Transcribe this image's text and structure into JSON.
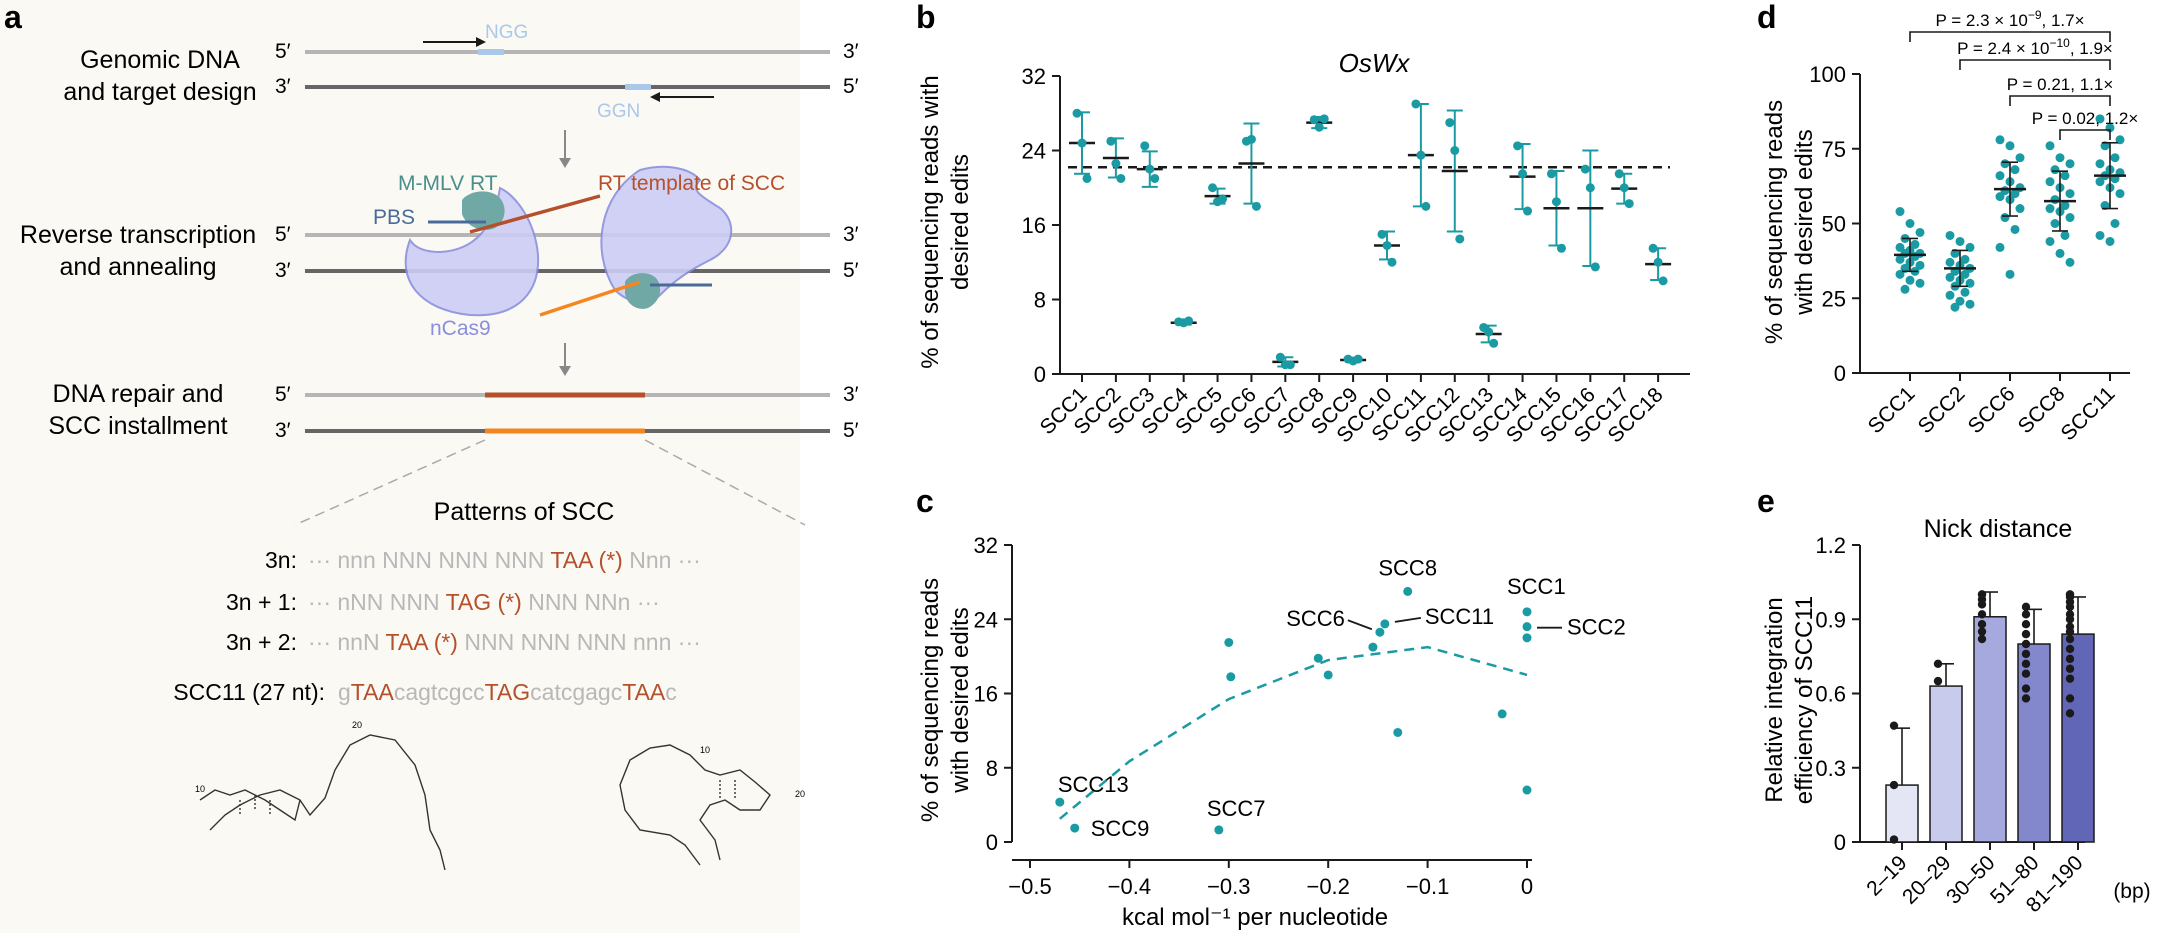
{
  "colors": {
    "teal": "#1a9ba3",
    "panelA_bg": "#fbf9f4",
    "strand_light": "#b5b5b5",
    "strand_dark": "#666666",
    "orange": "#f5861f",
    "rust": "#b5502c",
    "guide_blue": "#a9c8ea",
    "cas9_fill": "#cccdf5",
    "cas9_edge": "#8a8fdd",
    "rt_green": "#6fa8a4",
    "bar_colors": [
      "#e4e6f6",
      "#c9cbec",
      "#a6a9dd",
      "#8387cb",
      "#6166b6"
    ]
  },
  "panel_a": {
    "label": "a",
    "step1_line1": "Genomic DNA",
    "step1_line2": "and target design",
    "step2_line1": "Reverse transcription",
    "step2_line2": "and annealing",
    "step3_line1": "DNA repair and",
    "step3_line2": "SCC installment",
    "five": "5′",
    "three": "3′",
    "ngg": "NGG",
    "ggn": "GGN",
    "mmlv": "M-MLV RT",
    "pbs": "PBS",
    "rt_template": "RT template of SCC",
    "ncas9": "nCas9",
    "patterns_title": "Patterns of SCC",
    "row1_label": "3n:",
    "row1_pre": "··· nnn NNN NNN NNN ",
    "row1_stop": "TAA (*)",
    "row1_post": " Nnn ···",
    "row2_label": "3n + 1:",
    "row2_pre": "··· nNN NNN ",
    "row2_stop": "TAG (*)",
    "row2_post": " NNN NNn ···",
    "row3_label": "3n + 2:",
    "row3_pre": "··· nnN ",
    "row3_stop": "TAA (*)",
    "row3_post": " NNN NNN NNN nnn ···",
    "scc11_label": "SCC11 (27 nt):",
    "scc11_seq": [
      {
        "t": "g",
        "stop": false
      },
      {
        "t": "TAA",
        "stop": true
      },
      {
        "t": "cagtcgcc",
        "stop": false
      },
      {
        "t": "TAG",
        "stop": true
      },
      {
        "t": "catcgagc",
        "stop": false
      },
      {
        "t": "TAA",
        "stop": true
      },
      {
        "t": "c",
        "stop": false
      }
    ],
    "struct_numbers": [
      "10",
      "20",
      "10",
      "20"
    ]
  },
  "chart_data": [
    {
      "panel": "b",
      "type": "scatter",
      "title": "OsWx",
      "ylabel_line1": "% of sequencing reads with",
      "ylabel_line2": "desired edits",
      "ylim": [
        0,
        32
      ],
      "yticks": [
        "0",
        "8",
        "16",
        "24",
        "32"
      ],
      "categories": [
        "SCC1",
        "SCC2",
        "SCC3",
        "SCC4",
        "SCC5",
        "SCC6",
        "SCC7",
        "SCC8",
        "SCC9",
        "SCC10",
        "SCC11",
        "SCC12",
        "SCC13",
        "SCC14",
        "SCC15",
        "SCC16",
        "SCC17",
        "SCC18"
      ],
      "points": [
        [
          28,
          24.8,
          21
        ],
        [
          25,
          22.6,
          21
        ],
        [
          24.5,
          22,
          21
        ],
        [
          5.6,
          5.5,
          5.7
        ],
        [
          20,
          18.5,
          18.8
        ],
        [
          25,
          25.2,
          18
        ],
        [
          1.8,
          1.0,
          1.0
        ],
        [
          27.3,
          26.5,
          27.4
        ],
        [
          1.6,
          1.4,
          1.6
        ],
        [
          15,
          13.8,
          12
        ],
        [
          29,
          23.5,
          18
        ],
        [
          27,
          24,
          14.5
        ],
        [
          5.0,
          4.5,
          3.3
        ],
        [
          24.5,
          21.5,
          17.5
        ],
        [
          21.5,
          18.5,
          13.5
        ],
        [
          22,
          20,
          11.5
        ],
        [
          21.5,
          20,
          18.3
        ],
        [
          13.5,
          12,
          10
        ]
      ],
      "means": [
        24.8,
        23.2,
        22,
        5.5,
        19.1,
        22.6,
        1.3,
        27,
        1.5,
        13.8,
        23.5,
        21.8,
        4.3,
        21.2,
        17.8,
        17.8,
        19.9,
        11.8
      ],
      "sd": [
        3.3,
        2.1,
        1.9,
        0.2,
        0.8,
        4.3,
        0.5,
        0.6,
        0.2,
        1.5,
        5.5,
        6.5,
        0.9,
        3.5,
        4.0,
        6.2,
        1.6,
        1.7
      ],
      "reference_line": 22.2
    },
    {
      "panel": "c",
      "type": "scatter",
      "xlabel": "kcal mol⁻¹ per nucleotide",
      "ylabel_line1": "% of sequencing reads",
      "ylabel_line2": "with desired edits",
      "xlim": [
        -0.5,
        0
      ],
      "ylim": [
        0,
        32
      ],
      "xticks": [
        "−0.5",
        "−0.4",
        "−0.3",
        "−0.2",
        "−0.1",
        "0"
      ],
      "yticks": [
        "0",
        "8",
        "16",
        "24",
        "32"
      ],
      "points": [
        {
          "x": -0.47,
          "y": 4.3,
          "label": "SCC13"
        },
        {
          "x": -0.455,
          "y": 1.5,
          "label": "SCC9"
        },
        {
          "x": -0.31,
          "y": 1.3,
          "label": "SCC7"
        },
        {
          "x": -0.3,
          "y": 21.5,
          "label": ""
        },
        {
          "x": -0.298,
          "y": 17.8,
          "label": ""
        },
        {
          "x": -0.21,
          "y": 19.8,
          "label": ""
        },
        {
          "x": -0.2,
          "y": 18.0,
          "label": ""
        },
        {
          "x": -0.155,
          "y": 21.0,
          "label": ""
        },
        {
          "x": -0.148,
          "y": 22.6,
          "label": "SCC6"
        },
        {
          "x": -0.143,
          "y": 23.5,
          "label": "SCC11"
        },
        {
          "x": -0.13,
          "y": 11.8,
          "label": ""
        },
        {
          "x": -0.12,
          "y": 27.0,
          "label": "SCC8"
        },
        {
          "x": -0.025,
          "y": 13.8,
          "label": ""
        },
        {
          "x": 0,
          "y": 24.8,
          "label": "SCC1"
        },
        {
          "x": 0,
          "y": 23.2,
          "label": "SCC2"
        },
        {
          "x": 0,
          "y": 22.0,
          "label": ""
        },
        {
          "x": 0,
          "y": 5.6,
          "label": ""
        }
      ],
      "fit": [
        [
          -0.47,
          2.5
        ],
        [
          -0.4,
          8.7
        ],
        [
          -0.3,
          15.4
        ],
        [
          -0.2,
          19.6
        ],
        [
          -0.1,
          21.0
        ],
        [
          0,
          18.0
        ]
      ]
    },
    {
      "panel": "d",
      "type": "scatter",
      "ylabel_line1": "% of sequencing reads",
      "ylabel_line2": "with desired edits",
      "ylim": [
        0,
        100
      ],
      "yticks": [
        "0",
        "25",
        "50",
        "75",
        "100"
      ],
      "categories": [
        "SCC1",
        "SCC2",
        "SCC6",
        "SCC8",
        "SCC11"
      ],
      "series": [
        {
          "name": "SCC1",
          "mean": 39.5,
          "sd": 5.5,
          "values": [
            54,
            50,
            47,
            45,
            43,
            42,
            41,
            40,
            40,
            39,
            38,
            37,
            36,
            35,
            34,
            33,
            31,
            30,
            28
          ]
        },
        {
          "name": "SCC2",
          "mean": 35,
          "sd": 6,
          "values": [
            46,
            44,
            42,
            40,
            38,
            37,
            36,
            35,
            34,
            33,
            32,
            31,
            30,
            29,
            27,
            26,
            24,
            23,
            22
          ]
        },
        {
          "name": "SCC6",
          "mean": 61.5,
          "sd": 9,
          "values": [
            78,
            76,
            72,
            70,
            68,
            66,
            64,
            62,
            61,
            60,
            59,
            58,
            55,
            52,
            48,
            42,
            33
          ]
        },
        {
          "name": "SCC8",
          "mean": 57.5,
          "sd": 10,
          "values": [
            76,
            72,
            70,
            68,
            66,
            64,
            62,
            60,
            58,
            56,
            55,
            54,
            52,
            50,
            46,
            44,
            40,
            37
          ]
        },
        {
          "name": "SCC11",
          "mean": 66,
          "sd": 11,
          "values": [
            85,
            82,
            78,
            76,
            72,
            70,
            68,
            67,
            66,
            65,
            64,
            62,
            60,
            56,
            50,
            46,
            44
          ]
        }
      ],
      "brackets": [
        {
          "from": 0,
          "to": 4,
          "p": "P = 2.3 × 10",
          "exp": "−9",
          "fc": ", 1.7×"
        },
        {
          "from": 1,
          "to": 4,
          "p": "P = 2.4 × 10",
          "exp": "−10",
          "fc": ", 1.9×"
        },
        {
          "from": 2,
          "to": 4,
          "p": "P = 0.21, 1.1×",
          "exp": "",
          "fc": ""
        },
        {
          "from": 3,
          "to": 4,
          "p": "P = 0.02, 1.2×",
          "exp": "",
          "fc": ""
        }
      ]
    },
    {
      "panel": "e",
      "type": "bar",
      "title": "Nick distance",
      "ylabel_line1": "Relative integration",
      "ylabel_line2": "efficiency of SCC11",
      "ylim": [
        0,
        1.2
      ],
      "yticks": [
        "0",
        "0.3",
        "0.6",
        "0.9",
        "1.2"
      ],
      "categories": [
        "2–19",
        "20–29",
        "30–50",
        "51–80",
        "81–190"
      ],
      "unit": "(bp)",
      "values": [
        0.23,
        0.63,
        0.91,
        0.8,
        0.84
      ],
      "sd": [
        0.23,
        0.09,
        0.1,
        0.14,
        0.15
      ],
      "points": [
        [
          0.47,
          0.23,
          0.01
        ],
        [
          0.72,
          0.65
        ],
        [
          1.0,
          1.0,
          0.98,
          0.96,
          0.92,
          0.88,
          0.85,
          0.82
        ],
        [
          0.95,
          0.92,
          0.88,
          0.84,
          0.8,
          0.76,
          0.72,
          0.68,
          0.62,
          0.58
        ],
        [
          1.0,
          1.0,
          0.99,
          0.97,
          0.95,
          0.92,
          0.9,
          0.87,
          0.85,
          0.82,
          0.78,
          0.74,
          0.7,
          0.66,
          0.58,
          0.52
        ]
      ]
    }
  ],
  "panel_labels": {
    "b": "b",
    "c": "c",
    "d": "d",
    "e": "e"
  }
}
